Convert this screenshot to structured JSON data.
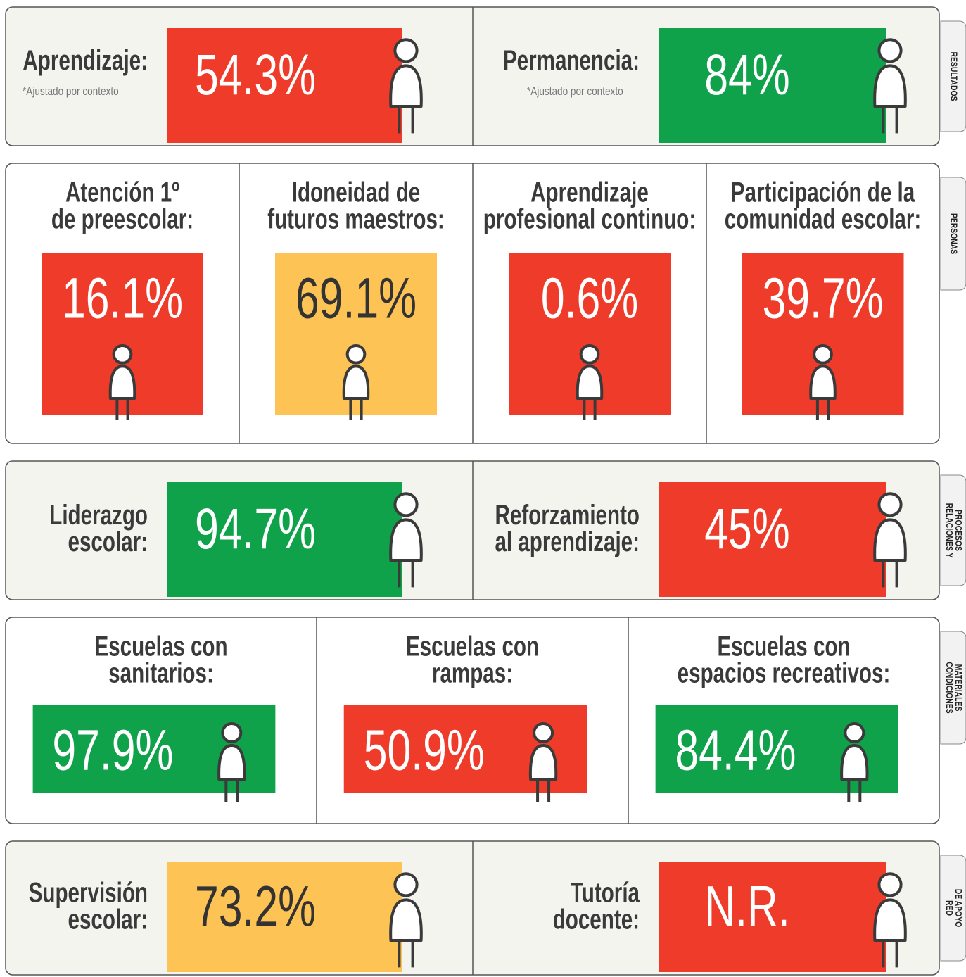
{
  "sections": [
    {
      "tab": [
        "RESULTADOS"
      ],
      "cards": [
        {
          "label": [
            "Aprendizaje:"
          ],
          "note": "*Ajustado por contexto",
          "value": "54.3%",
          "color": "#ee3b2a"
        },
        {
          "label": [
            "Permanencia:"
          ],
          "note": "*Ajustado por contexto",
          "value": "84%",
          "color": "#0fa24b"
        }
      ]
    },
    {
      "tab": [
        "PERSONAS"
      ],
      "cards": [
        {
          "label": [
            "Atención 1º",
            "de preescolar:"
          ],
          "value": "16.1%",
          "color": "#ee3b2a"
        },
        {
          "label": [
            "Idoneidad de",
            "futuros maestros:"
          ],
          "value": "69.1%",
          "color": "#fdc354"
        },
        {
          "label": [
            "Aprendizaje",
            "profesional continuo:"
          ],
          "value": "0.6%",
          "color": "#ee3b2a"
        },
        {
          "label": [
            "Participación de la",
            "comunidad escolar:"
          ],
          "value": "39.7%",
          "color": "#ee3b2a"
        }
      ]
    },
    {
      "tab": [
        "RELACIONES Y",
        "PROCESOS"
      ],
      "cards": [
        {
          "label": [
            "Liderazgo",
            "escolar:"
          ],
          "value": "94.7%",
          "color": "#0fa24b"
        },
        {
          "label": [
            "Reforzamiento",
            "al aprendizaje:"
          ],
          "value": "45%",
          "color": "#ee3b2a"
        }
      ]
    },
    {
      "tab": [
        "CONDICIONES",
        "MATERIALES"
      ],
      "cards": [
        {
          "label": [
            "Escuelas con",
            "sanitarios:"
          ],
          "value": "97.9%",
          "color": "#0fa24b"
        },
        {
          "label": [
            "Escuelas con",
            "rampas:"
          ],
          "value": "50.9%",
          "color": "#ee3b2a"
        },
        {
          "label": [
            "Escuelas con",
            "espacios recreativos:"
          ],
          "value": "84.4%",
          "color": "#0fa24b"
        }
      ]
    },
    {
      "tab": [
        "RED",
        "DE APOYO"
      ],
      "cards": [
        {
          "label": [
            "Supervisión",
            "escolar:"
          ],
          "value": "73.2%",
          "color": "#fdc354"
        },
        {
          "label": [
            "Tutoría",
            "docente:"
          ],
          "value": "N.R.",
          "color": "#ee3b2a"
        }
      ]
    }
  ]
}
